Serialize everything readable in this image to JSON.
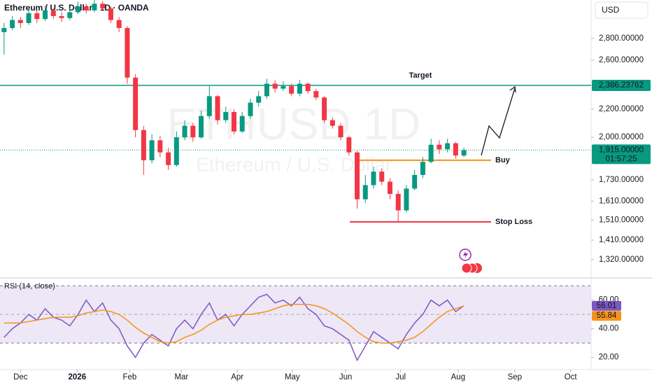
{
  "header": {
    "symbol": "Ethereum / U.S. Dollar · 1D · OANDA",
    "currency": "USD"
  },
  "watermark": {
    "symbol": "ETHUSD 1D",
    "name": "Ethereum / U.S. Dollar"
  },
  "chart_data": [
    {
      "type": "candlestick",
      "log_scale": true,
      "up_color": "#089981",
      "down_color": "#f23645",
      "ylim": [
        1246,
        3190
      ],
      "yticks": [
        {
          "value": 2800,
          "label": "2,800.00000"
        },
        {
          "value": 2600,
          "label": "2,600.00000"
        },
        {
          "value": 2200,
          "label": "2,200.00000"
        },
        {
          "value": 2000,
          "label": "2,000.00000"
        },
        {
          "value": 1730,
          "label": "1,730.00000"
        },
        {
          "value": 1610,
          "label": "1,610.00000"
        },
        {
          "value": 1510,
          "label": "1,510.00000"
        },
        {
          "value": 1410,
          "label": "1,410.00000"
        },
        {
          "value": 1320,
          "label": "1,320.00000"
        }
      ],
      "xlim": [
        -0.5,
        71.5
      ],
      "xticks": [
        {
          "value": 2.0,
          "label": "Dec"
        },
        {
          "value": 8.9,
          "label": "2026",
          "bold": true
        },
        {
          "value": 15.3,
          "label": "Feb"
        },
        {
          "value": 21.6,
          "label": "Mar"
        },
        {
          "value": 28.4,
          "label": "Apr"
        },
        {
          "value": 35.1,
          "label": "May"
        },
        {
          "value": 41.6,
          "label": "Jun"
        },
        {
          "value": 48.3,
          "label": "Jul"
        },
        {
          "value": 55.3,
          "label": "Aug"
        },
        {
          "value": 62.2,
          "label": "Sep"
        },
        {
          "value": 69.0,
          "label": "Oct"
        }
      ],
      "open": [
        2860,
        2900,
        2980,
        2950,
        3050,
        2990,
        3080,
        3020,
        3000,
        3060,
        3120,
        3080,
        3150,
        3100,
        2980,
        2900,
        2450,
        2050,
        1850,
        1980,
        1900,
        1820,
        2000,
        2080,
        2000,
        2150,
        2300,
        2120,
        2180,
        2040,
        2150,
        2250,
        2300,
        2400,
        2360,
        2380,
        2320,
        2400,
        2340,
        2290,
        2120,
        2080,
        2000,
        1900,
        1620,
        1700,
        1780,
        1720,
        1650,
        1560,
        1680,
        1760,
        1840,
        1950,
        1920,
        1960,
        1880
      ],
      "high": [
        2950,
        3020,
        3010,
        3100,
        3080,
        3130,
        3100,
        3060,
        3110,
        3170,
        3150,
        3200,
        3180,
        3120,
        3010,
        2920,
        2480,
        2080,
        2020,
        2010,
        1930,
        2040,
        2120,
        2100,
        2190,
        2380,
        2310,
        2220,
        2200,
        2180,
        2280,
        2340,
        2440,
        2430,
        2420,
        2400,
        2430,
        2410,
        2360,
        2300,
        2140,
        2100,
        2010,
        1910,
        1760,
        1810,
        1800,
        1740,
        1670,
        1700,
        1790,
        1870,
        1990,
        1980,
        1990,
        1970,
        1930
      ],
      "low": [
        2650,
        2880,
        2900,
        2930,
        2950,
        2970,
        2990,
        2960,
        2980,
        3040,
        3050,
        3060,
        3070,
        2950,
        2860,
        2400,
        2000,
        1760,
        1830,
        1870,
        1790,
        1810,
        1980,
        1970,
        1990,
        2130,
        2090,
        2100,
        2020,
        2030,
        2130,
        2220,
        2280,
        2330,
        2340,
        2300,
        2300,
        2320,
        2270,
        2100,
        2060,
        1980,
        1880,
        1570,
        1600,
        1680,
        1700,
        1620,
        1500,
        1550,
        1670,
        1740,
        1830,
        1890,
        1900,
        1860,
        1870
      ],
      "close": [
        2900,
        2980,
        2950,
        3050,
        2990,
        3080,
        3020,
        3000,
        3060,
        3120,
        3080,
        3150,
        3100,
        2980,
        2900,
        2450,
        2050,
        1850,
        1980,
        1900,
        1820,
        2000,
        2080,
        2000,
        2150,
        2300,
        2120,
        2180,
        2040,
        2150,
        2250,
        2300,
        2400,
        2360,
        2380,
        2320,
        2400,
        2340,
        2290,
        2120,
        2080,
        2000,
        1900,
        1620,
        1700,
        1780,
        1720,
        1650,
        1560,
        1680,
        1760,
        1840,
        1950,
        1920,
        1960,
        1880,
        1915
      ],
      "levels": {
        "target": {
          "value": 2386.23762,
          "label": "2,386.23762",
          "text": "Target",
          "color": "#089981"
        },
        "buy": {
          "value": 1850,
          "text": "Buy",
          "color": "#f7931a"
        },
        "stop_loss": {
          "value": 1500,
          "text": "Stop Loss",
          "color": "#f23645"
        }
      },
      "last_price": {
        "value": 1915,
        "label": "1,915.00000",
        "countdown": "01:57:25",
        "color": "#089981"
      }
    },
    {
      "type": "line",
      "title": "RSI (14, close)",
      "ylim": [
        11.5,
        74
      ],
      "yticks": [
        {
          "value": 20,
          "label": "20.00"
        },
        {
          "value": 40,
          "label": "40.00"
        },
        {
          "value": 60,
          "label": "60.00"
        }
      ],
      "band": [
        30,
        70
      ],
      "midline": 50,
      "band_color": "#ede7f6",
      "series": [
        {
          "color": "#7e57c2",
          "values": [
            34,
            40,
            44,
            50,
            46,
            54,
            48,
            46,
            42,
            50,
            60,
            52,
            58,
            46,
            40,
            28,
            20,
            30,
            36,
            32,
            28,
            40,
            46,
            40,
            50,
            58,
            46,
            50,
            42,
            50,
            56,
            62,
            64,
            58,
            60,
            56,
            62,
            54,
            50,
            42,
            40,
            36,
            32,
            18,
            28,
            38,
            34,
            30,
            26,
            36,
            44,
            50,
            60,
            56,
            60,
            52,
            56.01
          ]
        },
        {
          "color": "#f7931a",
          "values": [
            44,
            44,
            44,
            45,
            46,
            47,
            48,
            48,
            48,
            49,
            51,
            52,
            53,
            52,
            50,
            46,
            41,
            37,
            34,
            31,
            30,
            31,
            34,
            36,
            39,
            43,
            46,
            48,
            49,
            50,
            50,
            51,
            52,
            54,
            56,
            57,
            57,
            57,
            56,
            54,
            51,
            47,
            43,
            38,
            34,
            31,
            30,
            30,
            31,
            32,
            34,
            38,
            43,
            48,
            52,
            54,
            55.84
          ]
        }
      ]
    }
  ]
}
